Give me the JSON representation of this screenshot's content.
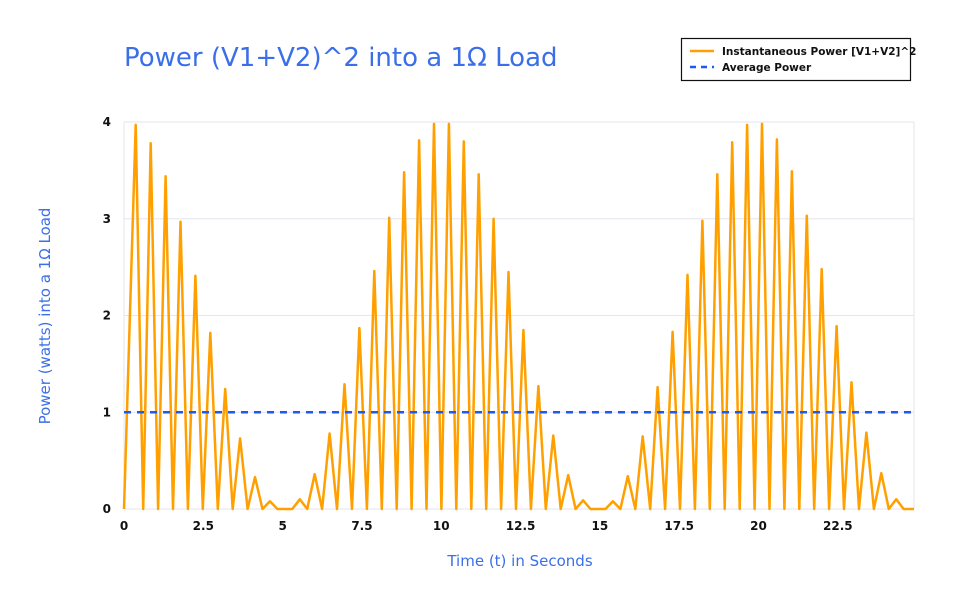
{
  "chart_data": {
    "type": "line",
    "title": "Power (V1+V2)^2 into a 1Ω Load",
    "xlabel": "Time (t) in Seconds",
    "ylabel": "Power (watts) into a 1Ω Load",
    "xlim": [
      0,
      24.9
    ],
    "ylim": [
      0,
      4
    ],
    "xticks": [
      0,
      2.5,
      5,
      7.5,
      10,
      12.5,
      15,
      17.5,
      20,
      22.5
    ],
    "xtick_labels": [
      "0",
      "2.5",
      "5",
      "7.5",
      "10",
      "12.5",
      "15",
      "17.5",
      "20",
      "22.5"
    ],
    "yticks": [
      0,
      1,
      2,
      3,
      4
    ],
    "ytick_labels": [
      "0",
      "1",
      "2",
      "3",
      "4"
    ],
    "grid": "horizontal",
    "legend_position": "top-right",
    "series": [
      {
        "name": "Instantaneous Power [V1+V2]^2",
        "color": "#ffa000",
        "style": "solid",
        "peak_x": [
          0.37,
          0.84,
          1.31,
          1.78,
          2.25,
          2.72,
          3.19,
          3.66,
          4.13,
          4.6,
          5.07,
          5.54,
          6.01,
          6.48,
          6.95,
          7.42,
          7.89,
          8.36,
          8.83,
          9.3,
          9.77,
          10.24,
          10.71,
          11.18,
          11.65,
          12.12,
          12.59,
          13.06,
          13.53,
          14.0,
          14.47,
          14.94,
          15.41,
          15.88,
          16.35,
          16.82,
          17.29,
          17.76,
          18.23,
          18.7,
          19.17,
          19.64,
          20.11,
          20.58,
          21.05,
          21.52,
          21.99,
          22.46,
          22.93,
          23.4,
          23.87,
          24.34,
          24.81
        ],
        "peak_y": [
          3.97,
          3.78,
          3.44,
          2.97,
          2.41,
          1.82,
          1.24,
          0.73,
          0.33,
          0.08,
          0.0,
          0.1,
          0.36,
          0.78,
          1.29,
          1.87,
          2.46,
          3.01,
          3.48,
          3.81,
          3.98,
          3.98,
          3.8,
          3.46,
          3.0,
          2.45,
          1.85,
          1.27,
          0.76,
          0.35,
          0.09,
          0.0,
          0.08,
          0.34,
          0.75,
          1.26,
          1.83,
          2.42,
          2.98,
          3.46,
          3.79,
          3.97,
          3.98,
          3.82,
          3.49,
          3.03,
          2.48,
          1.89,
          1.31,
          0.79,
          0.37,
          0.1,
          0.0
        ],
        "trough_x": [
          0,
          0.605,
          1.075,
          1.545,
          2.015,
          2.485,
          2.955,
          3.425,
          3.895,
          4.365,
          4.835,
          5.305,
          5.775,
          6.245,
          6.715,
          7.185,
          7.655,
          8.125,
          8.595,
          9.065,
          9.535,
          10.005,
          10.475,
          10.945,
          11.415,
          11.885,
          12.355,
          12.825,
          13.295,
          13.765,
          14.235,
          14.705,
          15.175,
          15.645,
          16.115,
          16.585,
          17.055,
          17.525,
          17.995,
          18.465,
          18.935,
          19.405,
          19.875,
          20.345,
          20.815,
          21.285,
          21.755,
          22.225,
          22.695,
          23.165,
          23.635,
          24.105,
          24.575,
          24.9
        ],
        "trough_y": 0
      },
      {
        "name": "Average Power",
        "color": "#1f5af0",
        "style": "dashed",
        "x": [
          0,
          24.9
        ],
        "y": [
          1,
          1
        ]
      }
    ]
  }
}
